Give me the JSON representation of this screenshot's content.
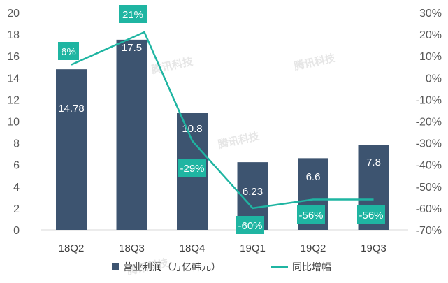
{
  "chart_data": {
    "type": "bar+line",
    "categories": [
      "18Q2",
      "18Q3",
      "18Q4",
      "19Q1",
      "19Q2",
      "19Q3"
    ],
    "series": [
      {
        "name": "营业利润（万亿韩元）",
        "type": "bar",
        "axis": "left",
        "values": [
          14.78,
          17.5,
          10.8,
          6.23,
          6.6,
          7.8
        ],
        "labels": [
          "14.78",
          "17.5",
          "10.8",
          "6.23",
          "6.6",
          "7.8"
        ]
      },
      {
        "name": "同比增幅",
        "type": "line",
        "axis": "right",
        "values": [
          6,
          21,
          -29,
          -60,
          -56,
          -56
        ],
        "labels": [
          "6%",
          "21%",
          "-29%",
          "-60%",
          "-56%",
          "-56%"
        ]
      }
    ],
    "y_left": {
      "min": 0,
      "max": 20,
      "step": 2,
      "ticks": [
        "0",
        "2",
        "4",
        "6",
        "8",
        "10",
        "12",
        "14",
        "16",
        "18",
        "20"
      ]
    },
    "y_right": {
      "min": -70,
      "max": 30,
      "step": 10,
      "ticks": [
        "-70%",
        "-60%",
        "-50%",
        "-40%",
        "-30%",
        "-20%",
        "-10%",
        "0%",
        "10%",
        "20%",
        "30%"
      ]
    },
    "legend_position": "bottom",
    "grid": false,
    "watermark": "腾讯科技"
  },
  "colors": {
    "bar": "#3d5470",
    "line": "#1fb5a2",
    "label_box": "#1fb5a2",
    "axis_text": "#595959"
  }
}
